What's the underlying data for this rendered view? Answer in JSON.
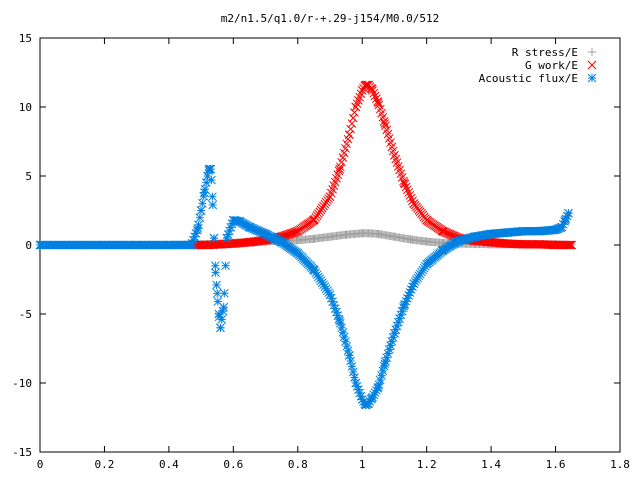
{
  "chart_data": {
    "type": "scatter",
    "title": "m2/n1.5/q1.0/r-+.29-j154/M0.0/512",
    "xlabel": "",
    "ylabel": "",
    "xlim": [
      0,
      1.8
    ],
    "ylim": [
      -15,
      15
    ],
    "grid": false,
    "legend_position": "top-right",
    "x_ticks": [
      "0",
      "0.2",
      "0.4",
      "0.6",
      "0.8",
      "1",
      "1.2",
      "1.4",
      "1.6",
      "1.8"
    ],
    "y_ticks": [
      "15",
      "10",
      "5",
      "0",
      "-5",
      "-10",
      "-15"
    ],
    "series": [
      {
        "name": "R stress/E",
        "marker": "plus",
        "color": "#a0a0a0",
        "x": [
          0.0,
          0.1,
          0.2,
          0.3,
          0.4,
          0.5,
          0.55,
          0.6,
          0.65,
          0.7,
          0.75,
          0.8,
          0.85,
          0.9,
          0.95,
          1.0,
          1.02,
          1.05,
          1.1,
          1.15,
          1.2,
          1.25,
          1.3,
          1.35,
          1.4,
          1.45,
          1.5,
          1.55,
          1.6,
          1.65
        ],
        "y": [
          0.0,
          0.0,
          0.0,
          0.0,
          0.0,
          0.05,
          0.1,
          0.15,
          0.2,
          0.25,
          0.3,
          0.35,
          0.45,
          0.6,
          0.75,
          0.85,
          0.85,
          0.8,
          0.6,
          0.4,
          0.25,
          0.15,
          0.1,
          0.08,
          0.05,
          0.05,
          0.05,
          0.05,
          0.05,
          0.0
        ]
      },
      {
        "name": "G work/E",
        "marker": "cross",
        "color": "#ff0000",
        "x": [
          0.48,
          0.52,
          0.56,
          0.6,
          0.65,
          0.7,
          0.75,
          0.8,
          0.85,
          0.9,
          0.93,
          0.96,
          0.98,
          1.0,
          1.01,
          1.02,
          1.03,
          1.05,
          1.07,
          1.1,
          1.13,
          1.16,
          1.2,
          1.25,
          1.3,
          1.35,
          1.4,
          1.45,
          1.5,
          1.55,
          1.6,
          1.65
        ],
        "y": [
          0.0,
          0.0,
          0.05,
          0.1,
          0.2,
          0.35,
          0.6,
          1.0,
          1.8,
          3.5,
          5.5,
          8.0,
          10.0,
          11.2,
          11.6,
          11.6,
          11.3,
          10.3,
          8.8,
          6.5,
          4.5,
          3.0,
          1.8,
          1.0,
          0.5,
          0.3,
          0.2,
          0.1,
          0.05,
          0.05,
          0.0,
          0.0
        ]
      },
      {
        "name": "Acoustic flux/E",
        "marker": "star",
        "color": "#0080e0",
        "x": [
          0.0,
          0.1,
          0.2,
          0.3,
          0.4,
          0.47,
          0.49,
          0.5,
          0.51,
          0.52,
          0.525,
          0.53,
          0.535,
          0.54,
          0.545,
          0.55,
          0.555,
          0.56,
          0.57,
          0.58,
          0.6,
          0.62,
          0.65,
          0.7,
          0.75,
          0.8,
          0.85,
          0.9,
          0.93,
          0.96,
          0.98,
          1.0,
          1.01,
          1.02,
          1.03,
          1.05,
          1.07,
          1.1,
          1.13,
          1.16,
          1.2,
          1.25,
          1.3,
          1.35,
          1.4,
          1.45,
          1.5,
          1.55,
          1.6,
          1.62,
          1.63,
          1.64
        ],
        "y": [
          0.0,
          0.0,
          0.0,
          0.0,
          0.0,
          0.0,
          1.2,
          2.5,
          3.8,
          5.0,
          5.5,
          5.5,
          3.5,
          0.5,
          -2.0,
          -3.5,
          -5.0,
          -6.0,
          -4.5,
          0.5,
          1.8,
          1.7,
          1.3,
          0.8,
          0.2,
          -0.6,
          -1.8,
          -3.6,
          -5.5,
          -8.0,
          -10.0,
          -11.2,
          -11.6,
          -11.5,
          -11.1,
          -10.3,
          -8.6,
          -6.4,
          -4.4,
          -2.8,
          -1.4,
          -0.4,
          0.3,
          0.6,
          0.8,
          0.9,
          1.0,
          1.0,
          1.1,
          1.3,
          1.8,
          2.3
        ]
      }
    ]
  }
}
